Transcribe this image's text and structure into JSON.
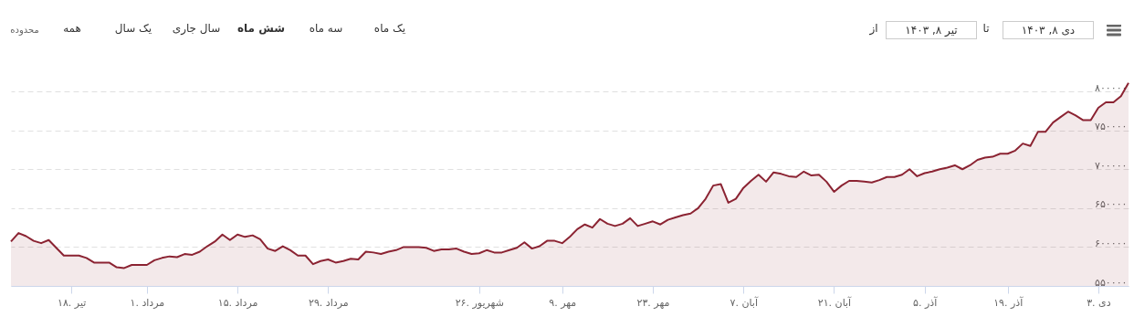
{
  "chart_data": {
    "type": "area",
    "annotations": [
      "یک ماه",
      "سه ماه",
      "شش ماه",
      "سال جاری",
      "یک سال",
      "همه",
      "محدوده",
      "از",
      "تیر ۸, ۱۴۰۳",
      "تا",
      "دی ۸, ۱۴۰۳"
    ],
    "categories": [
      null,
      null,
      null,
      null,
      null,
      null,
      null,
      null,
      "۱۸. تیر",
      null,
      null,
      null,
      null,
      null,
      null,
      null,
      null,
      null,
      "۱. مرداد",
      null,
      null,
      null,
      null,
      null,
      null,
      null,
      null,
      null,
      null,
      null,
      "۱۵. مرداد",
      null,
      null,
      null,
      null,
      null,
      null,
      null,
      null,
      null,
      null,
      null,
      "۲۹. مرداد",
      null,
      null,
      null,
      null,
      null,
      null,
      null,
      null,
      null,
      null,
      null,
      null,
      null,
      null,
      null,
      null,
      null,
      null,
      null,
      "۲۶. شهریور",
      null,
      null,
      null,
      null,
      null,
      null,
      null,
      null,
      null,
      null,
      "۹. مهر",
      null,
      null,
      null,
      null,
      null,
      null,
      null,
      null,
      null,
      null,
      null,
      "۲۳. مهر",
      null,
      null,
      null,
      null,
      null,
      null,
      null,
      null,
      null,
      null,
      null,
      "۷. آبان",
      null,
      null,
      null,
      null,
      null,
      null,
      null,
      null,
      null,
      null,
      null,
      "۲۱. آبان",
      null,
      null,
      null,
      null,
      null,
      null,
      null,
      null,
      null,
      null,
      null,
      "۵. آذر",
      null,
      null,
      null,
      null,
      null,
      null,
      null,
      null,
      null,
      null,
      "۱۹. آذر",
      null,
      null,
      null,
      null,
      null,
      null,
      null,
      null,
      null,
      null,
      null,
      "۳. دی",
      null,
      null,
      null,
      null
    ],
    "series": [
      {
        "color": "#8b2332",
        "values": [
          607000,
          618000,
          614000,
          608000,
          605000,
          609000,
          599000,
          589000,
          589000,
          589000,
          586000,
          580000,
          580000,
          580000,
          574000,
          573000,
          577000,
          577000,
          577000,
          583000,
          586000,
          588000,
          587000,
          591000,
          590000,
          594000,
          601000,
          607000,
          616000,
          609000,
          616000,
          613000,
          615000,
          610000,
          598000,
          595000,
          601000,
          596000,
          589000,
          589000,
          578000,
          582000,
          584000,
          580000,
          582000,
          585000,
          584000,
          594000,
          593000,
          591000,
          594000,
          596000,
          600000,
          600000,
          600000,
          599000,
          595000,
          597000,
          597000,
          598000,
          594000,
          591000,
          592000,
          596000,
          593000,
          593000,
          596000,
          599000,
          606000,
          598000,
          601000,
          608000,
          608000,
          605000,
          613000,
          623000,
          629000,
          625000,
          636000,
          630000,
          627000,
          630000,
          637000,
          627000,
          630000,
          633000,
          629000,
          635000,
          638000,
          641000,
          643000,
          650000,
          662000,
          679000,
          681000,
          657000,
          662000,
          676000,
          685000,
          693000,
          684000,
          696000,
          694000,
          691000,
          690000,
          697000,
          692000,
          693000,
          684000,
          671000,
          679000,
          685000,
          685000,
          684000,
          683000,
          686000,
          690000,
          690000,
          693000,
          700000,
          691000,
          695000,
          697000,
          700000,
          702000,
          705000,
          700000,
          705000,
          712000,
          715000,
          716000,
          720000,
          720000,
          724000,
          733000,
          730000,
          748000,
          748000,
          760000,
          767000,
          774000,
          769000,
          763000,
          763000,
          779000,
          786000,
          786000,
          794000,
          811000
        ]
      }
    ],
    "ylim": [
      550000,
      840000
    ],
    "yticks": [
      {
        "value": 550000,
        "label": "۵۵۰۰۰۰"
      },
      {
        "value": 600000,
        "label": "۶۰۰۰۰۰"
      },
      {
        "value": 650000,
        "label": "۶۵۰۰۰۰"
      },
      {
        "value": 700000,
        "label": "۷۰۰۰۰۰"
      },
      {
        "value": 750000,
        "label": "۷۵۰۰۰۰"
      },
      {
        "value": 800000,
        "label": "۸۰۰۰۰۰"
      }
    ],
    "grid": "y"
  }
}
